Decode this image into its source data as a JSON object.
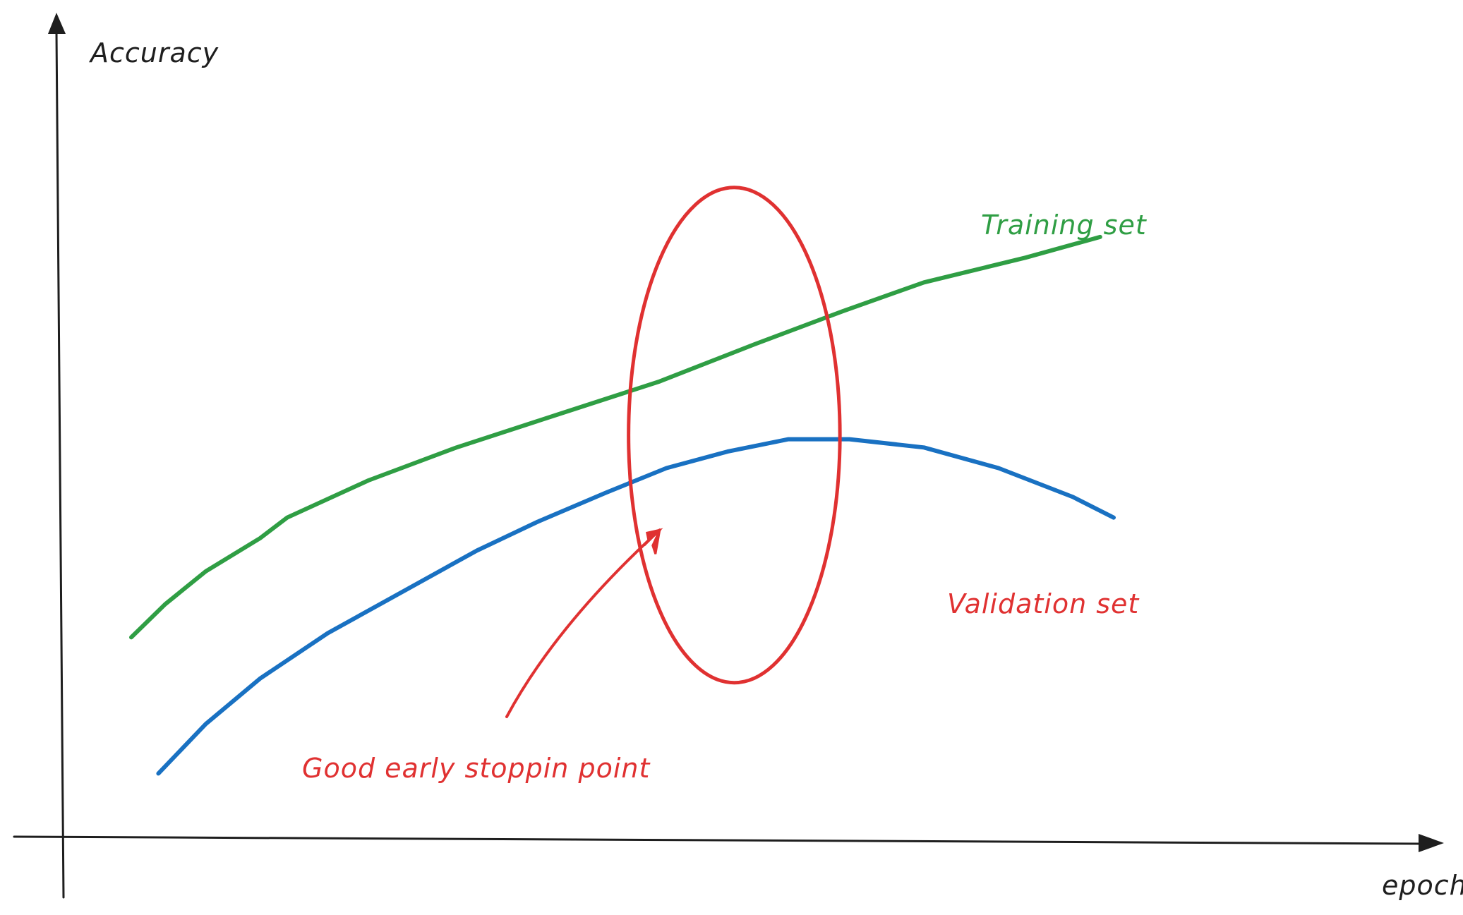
{
  "chart_data": {
    "type": "line",
    "title": "",
    "ylabel": "Accuracy",
    "xlabel": "epoch",
    "xlim": [
      0,
      100
    ],
    "ylim": [
      0,
      100
    ],
    "grid": false,
    "series": [
      {
        "name": "Training set",
        "color": "#2f9e44",
        "x": [
          5,
          7.5,
          10.5,
          14.5,
          16.5,
          22.5,
          29,
          36.5,
          44,
          51,
          57.5,
          63.5,
          71,
          76.5
        ],
        "y": [
          24.5,
          28.5,
          32.5,
          36.5,
          39,
          43.5,
          47.5,
          51.5,
          55.5,
          60,
          64,
          67.5,
          70.5,
          73
        ]
      },
      {
        "name": "Validation set",
        "color": "#1971c2",
        "x": [
          7,
          10.5,
          14.5,
          19.5,
          25,
          30.5,
          35,
          40,
          44.5,
          49,
          53.5,
          58,
          63.5,
          69,
          74.5,
          77.5
        ],
        "y": [
          8,
          14,
          19.5,
          25,
          30,
          35,
          38.5,
          42,
          45,
          47,
          48.5,
          48.5,
          47.5,
          45,
          41.5,
          39
        ]
      }
    ],
    "annotations": [
      {
        "text": "Good early stoppin point",
        "color": "#e03131",
        "target": {
          "x": 44,
          "y": 37.5
        }
      },
      {
        "highlight": "ellipse",
        "color": "#e03131",
        "center": {
          "x": 49.5,
          "y": 49
        },
        "rx": 7.8,
        "ry": 30
      }
    ]
  }
}
